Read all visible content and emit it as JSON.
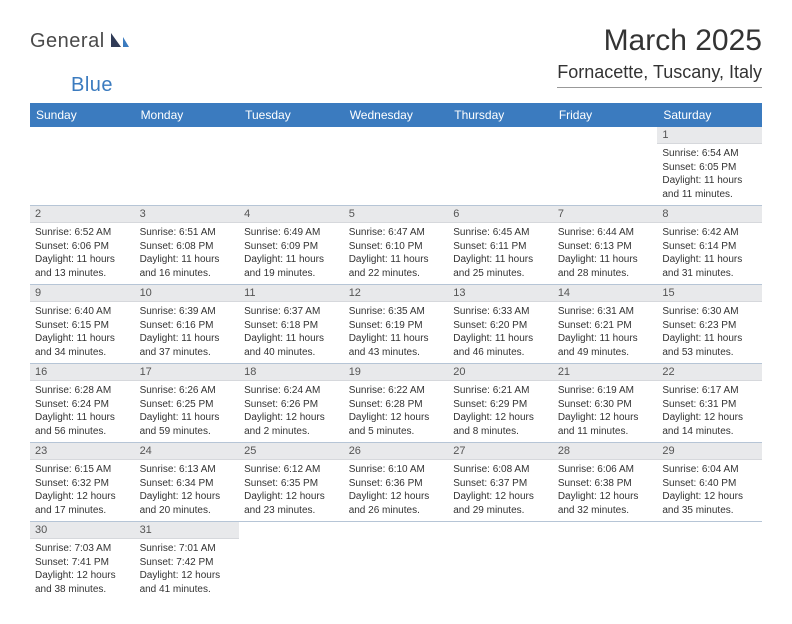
{
  "logo": {
    "general": "General",
    "blue": "Blue"
  },
  "title": "March 2025",
  "location": "Fornacette, Tuscany, Italy",
  "colors": {
    "header_bg": "#3b7bbf",
    "header_fg": "#ffffff",
    "daynum_bg": "#e8e9eb",
    "row_border": "#b6c5d6",
    "text": "#333333"
  },
  "typography": {
    "title_fontsize": 30,
    "location_fontsize": 18,
    "weekday_fontsize": 12,
    "daynum_fontsize": 11,
    "body_fontsize": 10
  },
  "weekdays": [
    "Sunday",
    "Monday",
    "Tuesday",
    "Wednesday",
    "Thursday",
    "Friday",
    "Saturday"
  ],
  "grid": [
    [
      null,
      null,
      null,
      null,
      null,
      null,
      {
        "n": "1",
        "sr": "Sunrise: 6:54 AM",
        "ss": "Sunset: 6:05 PM",
        "dl": "Daylight: 11 hours and 11 minutes."
      }
    ],
    [
      {
        "n": "2",
        "sr": "Sunrise: 6:52 AM",
        "ss": "Sunset: 6:06 PM",
        "dl": "Daylight: 11 hours and 13 minutes."
      },
      {
        "n": "3",
        "sr": "Sunrise: 6:51 AM",
        "ss": "Sunset: 6:08 PM",
        "dl": "Daylight: 11 hours and 16 minutes."
      },
      {
        "n": "4",
        "sr": "Sunrise: 6:49 AM",
        "ss": "Sunset: 6:09 PM",
        "dl": "Daylight: 11 hours and 19 minutes."
      },
      {
        "n": "5",
        "sr": "Sunrise: 6:47 AM",
        "ss": "Sunset: 6:10 PM",
        "dl": "Daylight: 11 hours and 22 minutes."
      },
      {
        "n": "6",
        "sr": "Sunrise: 6:45 AM",
        "ss": "Sunset: 6:11 PM",
        "dl": "Daylight: 11 hours and 25 minutes."
      },
      {
        "n": "7",
        "sr": "Sunrise: 6:44 AM",
        "ss": "Sunset: 6:13 PM",
        "dl": "Daylight: 11 hours and 28 minutes."
      },
      {
        "n": "8",
        "sr": "Sunrise: 6:42 AM",
        "ss": "Sunset: 6:14 PM",
        "dl": "Daylight: 11 hours and 31 minutes."
      }
    ],
    [
      {
        "n": "9",
        "sr": "Sunrise: 6:40 AM",
        "ss": "Sunset: 6:15 PM",
        "dl": "Daylight: 11 hours and 34 minutes."
      },
      {
        "n": "10",
        "sr": "Sunrise: 6:39 AM",
        "ss": "Sunset: 6:16 PM",
        "dl": "Daylight: 11 hours and 37 minutes."
      },
      {
        "n": "11",
        "sr": "Sunrise: 6:37 AM",
        "ss": "Sunset: 6:18 PM",
        "dl": "Daylight: 11 hours and 40 minutes."
      },
      {
        "n": "12",
        "sr": "Sunrise: 6:35 AM",
        "ss": "Sunset: 6:19 PM",
        "dl": "Daylight: 11 hours and 43 minutes."
      },
      {
        "n": "13",
        "sr": "Sunrise: 6:33 AM",
        "ss": "Sunset: 6:20 PM",
        "dl": "Daylight: 11 hours and 46 minutes."
      },
      {
        "n": "14",
        "sr": "Sunrise: 6:31 AM",
        "ss": "Sunset: 6:21 PM",
        "dl": "Daylight: 11 hours and 49 minutes."
      },
      {
        "n": "15",
        "sr": "Sunrise: 6:30 AM",
        "ss": "Sunset: 6:23 PM",
        "dl": "Daylight: 11 hours and 53 minutes."
      }
    ],
    [
      {
        "n": "16",
        "sr": "Sunrise: 6:28 AM",
        "ss": "Sunset: 6:24 PM",
        "dl": "Daylight: 11 hours and 56 minutes."
      },
      {
        "n": "17",
        "sr": "Sunrise: 6:26 AM",
        "ss": "Sunset: 6:25 PM",
        "dl": "Daylight: 11 hours and 59 minutes."
      },
      {
        "n": "18",
        "sr": "Sunrise: 6:24 AM",
        "ss": "Sunset: 6:26 PM",
        "dl": "Daylight: 12 hours and 2 minutes."
      },
      {
        "n": "19",
        "sr": "Sunrise: 6:22 AM",
        "ss": "Sunset: 6:28 PM",
        "dl": "Daylight: 12 hours and 5 minutes."
      },
      {
        "n": "20",
        "sr": "Sunrise: 6:21 AM",
        "ss": "Sunset: 6:29 PM",
        "dl": "Daylight: 12 hours and 8 minutes."
      },
      {
        "n": "21",
        "sr": "Sunrise: 6:19 AM",
        "ss": "Sunset: 6:30 PM",
        "dl": "Daylight: 12 hours and 11 minutes."
      },
      {
        "n": "22",
        "sr": "Sunrise: 6:17 AM",
        "ss": "Sunset: 6:31 PM",
        "dl": "Daylight: 12 hours and 14 minutes."
      }
    ],
    [
      {
        "n": "23",
        "sr": "Sunrise: 6:15 AM",
        "ss": "Sunset: 6:32 PM",
        "dl": "Daylight: 12 hours and 17 minutes."
      },
      {
        "n": "24",
        "sr": "Sunrise: 6:13 AM",
        "ss": "Sunset: 6:34 PM",
        "dl": "Daylight: 12 hours and 20 minutes."
      },
      {
        "n": "25",
        "sr": "Sunrise: 6:12 AM",
        "ss": "Sunset: 6:35 PM",
        "dl": "Daylight: 12 hours and 23 minutes."
      },
      {
        "n": "26",
        "sr": "Sunrise: 6:10 AM",
        "ss": "Sunset: 6:36 PM",
        "dl": "Daylight: 12 hours and 26 minutes."
      },
      {
        "n": "27",
        "sr": "Sunrise: 6:08 AM",
        "ss": "Sunset: 6:37 PM",
        "dl": "Daylight: 12 hours and 29 minutes."
      },
      {
        "n": "28",
        "sr": "Sunrise: 6:06 AM",
        "ss": "Sunset: 6:38 PM",
        "dl": "Daylight: 12 hours and 32 minutes."
      },
      {
        "n": "29",
        "sr": "Sunrise: 6:04 AM",
        "ss": "Sunset: 6:40 PM",
        "dl": "Daylight: 12 hours and 35 minutes."
      }
    ],
    [
      {
        "n": "30",
        "sr": "Sunrise: 7:03 AM",
        "ss": "Sunset: 7:41 PM",
        "dl": "Daylight: 12 hours and 38 minutes."
      },
      {
        "n": "31",
        "sr": "Sunrise: 7:01 AM",
        "ss": "Sunset: 7:42 PM",
        "dl": "Daylight: 12 hours and 41 minutes."
      },
      null,
      null,
      null,
      null,
      null
    ]
  ]
}
